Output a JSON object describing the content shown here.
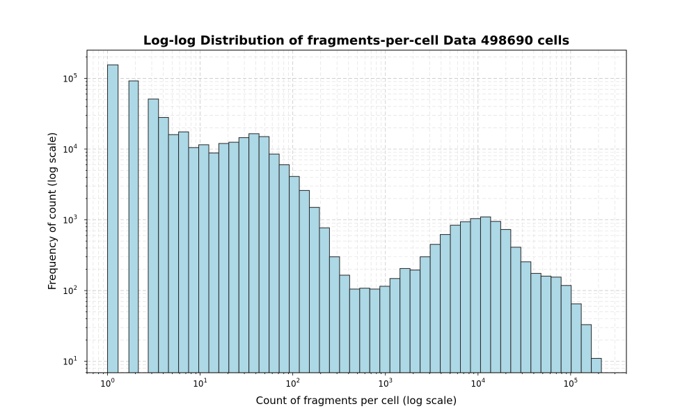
{
  "chart_data": {
    "type": "bar",
    "title": "Log-log Distribution of fragments-per-cell Data 498690 cells",
    "xlabel": "Count of fragments per cell (log scale)",
    "ylabel": "Frequency of count (log scale)",
    "x_scale": "log",
    "y_scale": "log",
    "xlim": [
      0.6,
      400000
    ],
    "ylim": [
      6.9,
      250000
    ],
    "grid": true,
    "x_ticks": [
      {
        "base": "10",
        "exp": "0"
      },
      {
        "base": "10",
        "exp": "1"
      },
      {
        "base": "10",
        "exp": "2"
      },
      {
        "base": "10",
        "exp": "3"
      },
      {
        "base": "10",
        "exp": "4"
      },
      {
        "base": "10",
        "exp": "5"
      }
    ],
    "y_ticks": [
      {
        "base": "10",
        "exp": "1"
      },
      {
        "base": "10",
        "exp": "2"
      },
      {
        "base": "10",
        "exp": "3"
      },
      {
        "base": "10",
        "exp": "4"
      },
      {
        "base": "10",
        "exp": "5"
      }
    ],
    "bin_edges": [
      1.0,
      1.3,
      1.7,
      2.15,
      2.75,
      3.55,
      4.55,
      5.85,
      7.5,
      9.65,
      12.4,
      15.9,
      20.4,
      26.2,
      33.6,
      43.2,
      55.5,
      71.3,
      91.6,
      117.6,
      151,
      194,
      249,
      320,
      411,
      528,
      678,
      871,
      1119,
      1437,
      1846,
      2371,
      3046,
      3912,
      5025,
      6455,
      8291,
      10650,
      13680,
      17570,
      22570,
      28990,
      37240,
      47830,
      61440,
      78920,
      101400,
      130200,
      167200,
      214800
    ],
    "values": [
      155000,
      0,
      92000,
      0,
      51000,
      28000,
      16000,
      17500,
      10500,
      11500,
      8800,
      12000,
      12500,
      14500,
      16500,
      15000,
      8500,
      6000,
      4100,
      2600,
      1500,
      770,
      300,
      165,
      105,
      108,
      105,
      115,
      148,
      205,
      195,
      300,
      450,
      620,
      840,
      940,
      1040,
      1100,
      950,
      730,
      410,
      255,
      175,
      160,
      155,
      118,
      65,
      33,
      11
    ]
  }
}
